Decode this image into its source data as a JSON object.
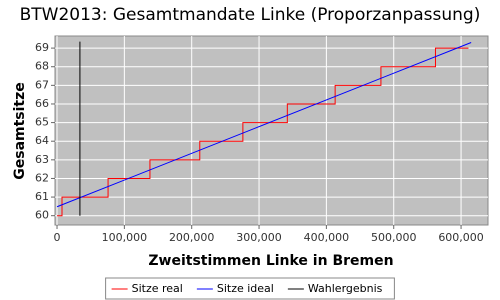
{
  "chart_data": {
    "type": "line",
    "title": "BTW2013: Gesamtmandate Linke (Proporzanpassung)",
    "x_label": "Zweitstimmen Linke in Bremen",
    "y_label": "Gesamtsitze",
    "xlim": [
      -3000,
      640000
    ],
    "ylim": [
      59.5,
      69.65
    ],
    "xticks": [
      0,
      {
        "value": 100000,
        "label": "100,000"
      },
      {
        "value": 200000,
        "label": "200,000"
      },
      {
        "value": 300000,
        "label": "300,000"
      },
      {
        "value": 400000,
        "label": "400,000"
      },
      {
        "value": 500000,
        "label": "500,000"
      },
      {
        "value": 600000,
        "label": "600,000"
      }
    ],
    "yticks": [
      60,
      61,
      62,
      63,
      64,
      65,
      66,
      67,
      68,
      69
    ],
    "grid": true,
    "legend": "bottom",
    "series": [
      {
        "name": "Sitze real",
        "color": "#ff0000",
        "drawstyle": "steps-post",
        "x": [
          0,
          7400,
          75800,
          138000,
          212000,
          276000,
          342000,
          413000,
          481000,
          562000,
          611000
        ],
        "values": [
          60,
          61,
          62,
          63,
          64,
          65,
          66,
          67,
          68,
          69,
          69
        ]
      },
      {
        "name": "Sitze ideal",
        "color": "#0000ff",
        "x": [
          0,
          615000
        ],
        "values": [
          60.48,
          69.3
        ]
      },
      {
        "name": "Wahlergebnis",
        "color": "#000000",
        "x": [
          34000,
          34000
        ],
        "values": [
          60,
          69.35
        ]
      }
    ]
  }
}
